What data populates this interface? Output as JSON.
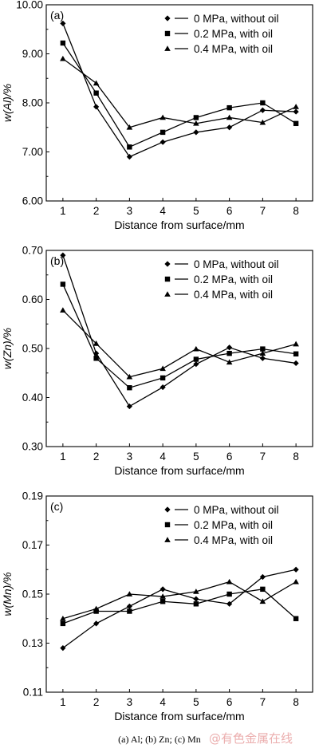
{
  "chart_data": [
    {
      "type": "line",
      "panel_label": "(a)",
      "ylabel": "w(Al)/%",
      "xlabel": "Distance from surface/mm",
      "x": [
        1,
        2,
        3,
        4,
        5,
        6,
        7,
        8
      ],
      "ylim": [
        6.0,
        10.0
      ],
      "yticks": [
        "6.00",
        "7.00",
        "8.00",
        "9.00",
        "10.00"
      ],
      "legend_position": "top-right",
      "series": [
        {
          "name": "0 MPa, without oil",
          "marker": "diamond",
          "values": [
            9.62,
            7.92,
            6.9,
            7.2,
            7.4,
            7.5,
            7.85,
            7.82
          ]
        },
        {
          "name": "0.2 MPa, with oil",
          "marker": "square",
          "values": [
            9.22,
            8.2,
            7.1,
            7.4,
            7.7,
            7.9,
            8.0,
            7.58
          ]
        },
        {
          "name": "0.4 MPa, with oil",
          "marker": "triangle",
          "values": [
            8.9,
            8.4,
            7.5,
            7.7,
            7.58,
            7.7,
            7.6,
            7.92
          ]
        }
      ]
    },
    {
      "type": "line",
      "panel_label": "(b)",
      "ylabel": "w(Zn)/%",
      "xlabel": "Distance from surface/mm",
      "x": [
        1,
        2,
        3,
        4,
        5,
        6,
        7,
        8
      ],
      "ylim": [
        0.3,
        0.7
      ],
      "yticks": [
        "0.30",
        "0.40",
        "0.50",
        "0.60",
        "0.70"
      ],
      "legend_position": "top-right",
      "series": [
        {
          "name": "0 MPa, without oil",
          "marker": "diamond",
          "values": [
            0.69,
            0.49,
            0.382,
            0.421,
            0.468,
            0.502,
            0.48,
            0.47
          ]
        },
        {
          "name": "0.2 MPa, with oil",
          "marker": "square",
          "values": [
            0.631,
            0.48,
            0.42,
            0.44,
            0.478,
            0.49,
            0.499,
            0.489
          ]
        },
        {
          "name": "0.4 MPa, with oil",
          "marker": "triangle",
          "values": [
            0.578,
            0.51,
            0.442,
            0.459,
            0.499,
            0.472,
            0.49,
            0.509
          ]
        }
      ]
    },
    {
      "type": "line",
      "panel_label": "(c)",
      "ylabel": "w(Mn)/%",
      "xlabel": "Distance from surface/mm",
      "x": [
        1,
        2,
        3,
        4,
        5,
        6,
        7,
        8
      ],
      "ylim": [
        0.11,
        0.19
      ],
      "yticks": [
        "0.11",
        "0.13",
        "0.15",
        "0.17",
        "0.19"
      ],
      "legend_position": "top-right",
      "series": [
        {
          "name": "0 MPa, without oil",
          "marker": "diamond",
          "values": [
            0.128,
            0.138,
            0.145,
            0.152,
            0.148,
            0.146,
            0.157,
            0.16
          ]
        },
        {
          "name": "0.2 MPa, with oil",
          "marker": "square",
          "values": [
            0.138,
            0.143,
            0.143,
            0.147,
            0.146,
            0.15,
            0.152,
            0.14
          ]
        },
        {
          "name": "0.4 MPa, with oil",
          "marker": "triangle",
          "values": [
            0.14,
            0.144,
            0.15,
            0.149,
            0.151,
            0.155,
            0.147,
            0.155
          ]
        }
      ]
    }
  ],
  "caption": "(a) Al; (b) Zn; (c) Mn",
  "watermark": "@有色金属在线"
}
